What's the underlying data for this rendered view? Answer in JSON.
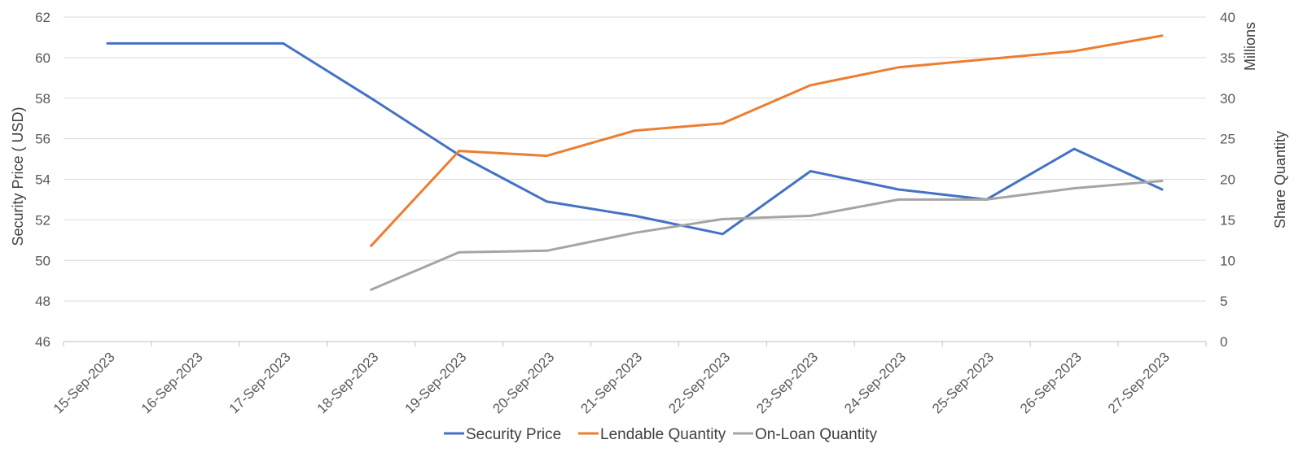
{
  "chart_data": {
    "type": "line",
    "categories": [
      "15-Sep-2023",
      "16-Sep-2023",
      "17-Sep-2023",
      "18-Sep-2023",
      "19-Sep-2023",
      "20-Sep-2023",
      "21-Sep-2023",
      "22-Sep-2023",
      "23-Sep-2023",
      "24-Sep-2023",
      "25-Sep-2023",
      "26-Sep-2023",
      "27-Sep-2023"
    ],
    "left_axis": {
      "label": "Security Price ( USD)",
      "ylim": [
        46,
        62
      ],
      "ticks": [
        "46",
        "48",
        "50",
        "52",
        "54",
        "56",
        "58",
        "60",
        "62"
      ]
    },
    "right_axis": {
      "label": "Share Quantity",
      "unit_label": "Millions",
      "ylim": [
        0,
        40
      ],
      "ticks": [
        "0",
        "5",
        "10",
        "15",
        "20",
        "25",
        "30",
        "35",
        "40"
      ]
    },
    "series": [
      {
        "name": "Security Price",
        "axis": "left",
        "color": "#4472C4",
        "values": [
          60.7,
          60.7,
          60.7,
          58.0,
          55.2,
          52.9,
          52.2,
          51.3,
          54.4,
          53.5,
          53.0,
          55.5,
          53.5
        ]
      },
      {
        "name": "Lendable Quantity",
        "axis": "right",
        "color": "#ED7D31",
        "values": [
          null,
          null,
          null,
          11.8,
          23.5,
          22.9,
          26.0,
          26.9,
          31.6,
          33.8,
          34.8,
          35.8,
          37.7
        ]
      },
      {
        "name": "On-Loan Quantity",
        "axis": "right",
        "color": "#A5A5A5",
        "values": [
          null,
          null,
          null,
          6.4,
          11.0,
          11.2,
          13.4,
          15.1,
          15.5,
          17.5,
          17.5,
          18.9,
          19.8
        ]
      }
    ],
    "grid": true,
    "legend_position": "bottom"
  }
}
